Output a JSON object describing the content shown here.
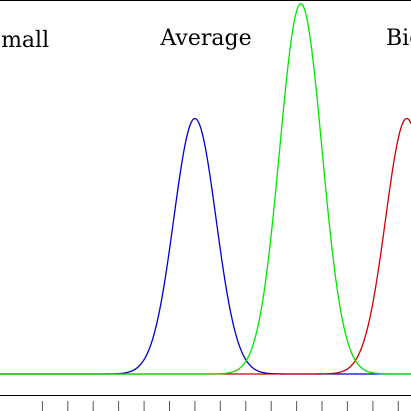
{
  "chart_data": {
    "type": "line",
    "title": "",
    "xlabel": "",
    "ylabel": "",
    "xlim": [
      -0.92,
      1.02
    ],
    "ylim": [
      0,
      1.01
    ],
    "legend": "labels above each curve",
    "series": [
      {
        "name": "Small",
        "color": "#0000cc",
        "shape": "gaussian",
        "center": 0,
        "peak": 0.69,
        "sigma": 0.1,
        "label_text": "Small"
      },
      {
        "name": "Average",
        "color": "#00e600",
        "shape": "gaussian",
        "center": 0.5,
        "peak": 1.0,
        "sigma": 0.1,
        "label_text": "Average"
      },
      {
        "name": "Big",
        "color": "#cc0000",
        "shape": "gaussian",
        "center": 1.0,
        "peak": 0.69,
        "sigma": 0.1,
        "label_text": "Big"
      }
    ],
    "x_ticks": [
      -0.72,
      -0.6,
      -0.48,
      -0.36,
      -0.24,
      -0.12,
      0,
      0.12,
      0.24,
      0.36,
      0.48,
      0.6,
      0.72,
      0.84,
      0.96
    ],
    "grid": false
  }
}
